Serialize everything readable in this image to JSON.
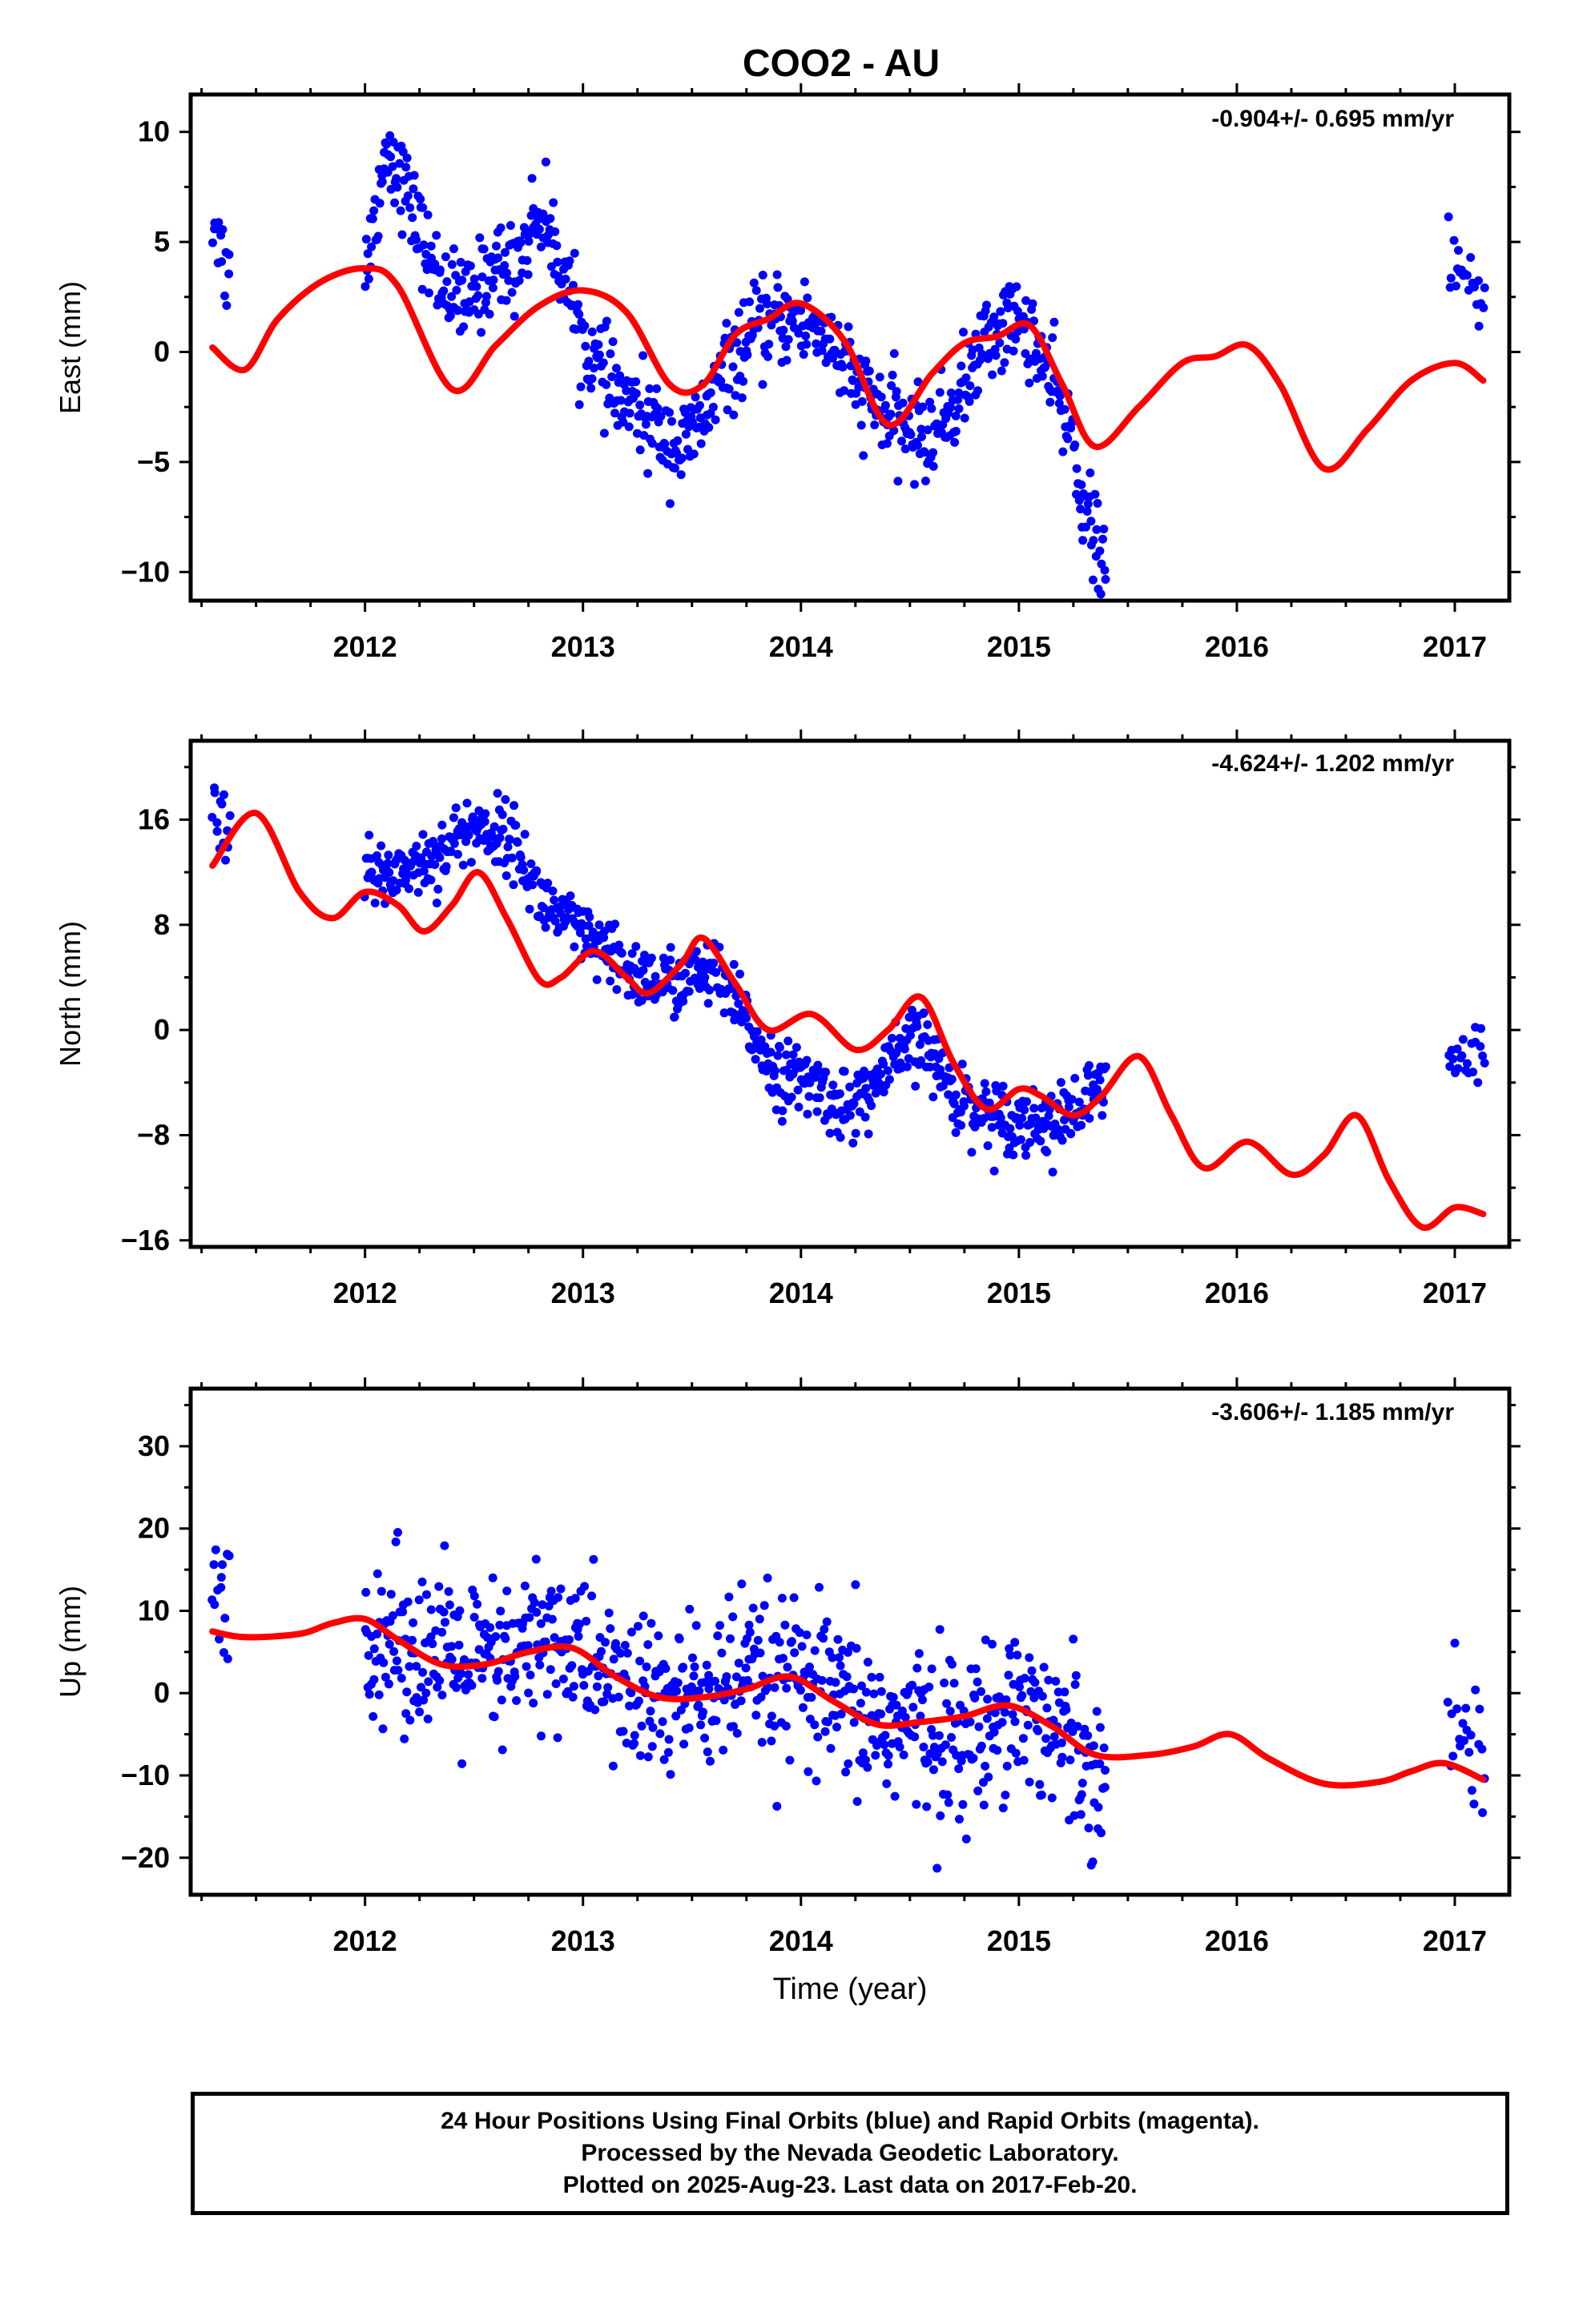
{
  "title": "COO2 - AU",
  "xlabel": "Time (year)",
  "colors": {
    "points": "#0000ff",
    "model": "#ff0000",
    "frame": "#000000"
  },
  "footer": {
    "line1": "24 Hour Positions Using Final Orbits (blue) and Rapid Orbits (magenta).",
    "line2": "Processed by the Nevada Geodetic Laboratory.",
    "line3": "Plotted on 2025-Aug-23. Last data on 2017-Feb-20."
  },
  "chart_data": [
    {
      "type": "scatter",
      "component": "east",
      "ylabel": "East (mm)",
      "rate": "-0.904+/- 0.695 mm/yr",
      "xlim": [
        2011.2,
        2017.25
      ],
      "ylim": [
        -11.3,
        11.7
      ],
      "yticks": [
        -10,
        -5,
        0,
        5,
        10
      ],
      "yticklabels": [
        "−10",
        "−5",
        "0",
        "5",
        "10"
      ],
      "xticks": [
        2012,
        2013,
        2014,
        2015,
        2016,
        2017
      ],
      "xticklabels": [
        "2012",
        "2013",
        "2014",
        "2015",
        "2016",
        "2017"
      ],
      "anchors": [
        [
          2011.32,
          6.0
        ],
        [
          2011.36,
          3.5
        ],
        [
          2012.02,
          4.5
        ],
        [
          2012.1,
          9.5
        ],
        [
          2012.2,
          7.0
        ],
        [
          2012.3,
          4.0
        ],
        [
          2012.45,
          2.0
        ],
        [
          2012.6,
          4.0
        ],
        [
          2012.68,
          3.8
        ],
        [
          2012.8,
          6.5
        ],
        [
          2012.9,
          4.0
        ],
        [
          2013.0,
          0.5
        ],
        [
          2013.15,
          -2.0
        ],
        [
          2013.35,
          -3.5
        ],
        [
          2013.45,
          -4.5
        ],
        [
          2013.55,
          -3.0
        ],
        [
          2013.65,
          -1.0
        ],
        [
          2013.8,
          1.0
        ],
        [
          2013.95,
          1.5
        ],
        [
          2014.1,
          1.0
        ],
        [
          2014.25,
          -1.5
        ],
        [
          2014.4,
          -3.0
        ],
        [
          2014.5,
          -3.5
        ],
        [
          2014.58,
          -4.0
        ],
        [
          2014.7,
          -2.5
        ],
        [
          2014.85,
          0.5
        ],
        [
          2014.95,
          1.5
        ],
        [
          2015.05,
          1.0
        ],
        [
          2015.15,
          -1.5
        ],
        [
          2015.25,
          -4.0
        ],
        [
          2015.3,
          -7.0
        ],
        [
          2015.38,
          -9.5
        ],
        [
          2016.98,
          4.0
        ],
        [
          2017.13,
          2.0
        ]
      ],
      "scatter_sd": 1.0,
      "model": {
        "x": [
          2011.3,
          2011.45,
          2011.6,
          2011.8,
          2012.0,
          2012.15,
          2012.4,
          2012.6,
          2012.8,
          2013.0,
          2013.2,
          2013.4,
          2013.55,
          2013.7,
          2013.85,
          2014.0,
          2014.2,
          2014.4,
          2014.6,
          2014.75,
          2014.9,
          2015.05,
          2015.2,
          2015.35,
          2015.55,
          2015.75,
          2015.9,
          2016.05,
          2016.2,
          2016.4,
          2016.6,
          2016.8,
          2017.0,
          2017.13
        ],
        "y": [
          0.2,
          -0.8,
          1.5,
          3.2,
          3.8,
          3.0,
          -1.7,
          0.3,
          2.1,
          2.8,
          1.8,
          -1.5,
          -1.5,
          0.8,
          1.5,
          2.2,
          0.5,
          -3.3,
          -1.0,
          0.4,
          0.7,
          1.2,
          -1.5,
          -4.3,
          -2.5,
          -0.5,
          -0.2,
          0.3,
          -1.5,
          -5.3,
          -3.5,
          -1.3,
          -0.5,
          -1.3
        ]
      }
    },
    {
      "type": "scatter",
      "component": "north",
      "ylabel": "North (mm)",
      "rate": "-4.624+/- 1.202 mm/yr",
      "xlim": [
        2011.2,
        2017.25
      ],
      "ylim": [
        -16.5,
        22
      ],
      "yticks": [
        -16,
        -8,
        0,
        8,
        16
      ],
      "yticklabels": [
        "−16",
        "−8",
        "0",
        "8",
        "16"
      ],
      "xticks": [
        2012,
        2013,
        2014,
        2015,
        2016,
        2017
      ],
      "xticklabels": [
        "2012",
        "2013",
        "2014",
        "2015",
        "2016",
        "2017"
      ],
      "anchors": [
        [
          2011.32,
          17.0
        ],
        [
          2011.36,
          15.5
        ],
        [
          2012.02,
          11.5
        ],
        [
          2012.3,
          13.0
        ],
        [
          2012.5,
          15.5
        ],
        [
          2012.68,
          14.5
        ],
        [
          2012.8,
          10.0
        ],
        [
          2013.0,
          7.0
        ],
        [
          2013.2,
          4.5
        ],
        [
          2013.4,
          3.5
        ],
        [
          2013.6,
          4.5
        ],
        [
          2013.75,
          0.5
        ],
        [
          2013.9,
          -3.5
        ],
        [
          2014.05,
          -4.0
        ],
        [
          2014.2,
          -6.0
        ],
        [
          2014.3,
          -5.0
        ],
        [
          2014.45,
          -2.0
        ],
        [
          2014.55,
          -0.5
        ],
        [
          2014.7,
          -5.0
        ],
        [
          2014.9,
          -6.5
        ],
        [
          2015.05,
          -7.0
        ],
        [
          2015.2,
          -7.0
        ],
        [
          2015.33,
          -5.0
        ],
        [
          2016.98,
          -2.0
        ],
        [
          2017.13,
          -2.5
        ]
      ],
      "scatter_sd": 1.3,
      "model": {
        "x": [
          2011.3,
          2011.5,
          2011.7,
          2011.85,
          2012.0,
          2012.15,
          2012.27,
          2012.4,
          2012.52,
          2012.65,
          2012.8,
          2012.9,
          2013.05,
          2013.2,
          2013.3,
          2013.45,
          2013.55,
          2013.7,
          2013.85,
          2014.05,
          2014.25,
          2014.4,
          2014.55,
          2014.7,
          2014.85,
          2015.0,
          2015.1,
          2015.25,
          2015.38,
          2015.55,
          2015.7,
          2015.85,
          2016.05,
          2016.25,
          2016.4,
          2016.55,
          2016.7,
          2016.85,
          2017.0,
          2017.13
        ],
        "y": [
          12.5,
          16.5,
          10.5,
          8.5,
          10.5,
          9.5,
          7.5,
          9.5,
          12.0,
          8.5,
          3.8,
          4.0,
          6.0,
          4.0,
          2.8,
          5.0,
          7.0,
          3.5,
          0.0,
          1.2,
          -1.5,
          0.0,
          2.5,
          -2.5,
          -6.0,
          -4.5,
          -5.0,
          -6.5,
          -5.0,
          -2.0,
          -6.5,
          -10.5,
          -8.5,
          -11.0,
          -9.5,
          -6.5,
          -11.5,
          -15.0,
          -13.5,
          -14.0
        ]
      }
    },
    {
      "type": "scatter",
      "component": "up",
      "ylabel": "Up (mm)",
      "rate": "-3.606+/- 1.185 mm/yr",
      "xlim": [
        2011.2,
        2017.25
      ],
      "ylim": [
        -24.5,
        37
      ],
      "yticks": [
        -20,
        -10,
        0,
        10,
        20,
        30
      ],
      "yticklabels": [
        "−20",
        "−10",
        "0",
        "10",
        "20",
        "30"
      ],
      "xticks": [
        2012,
        2013,
        2014,
        2015,
        2016,
        2017
      ],
      "xticklabels": [
        "2012",
        "2013",
        "2014",
        "2015",
        "2016",
        "2017"
      ],
      "anchors": [
        [
          2011.32,
          12.0
        ],
        [
          2011.36,
          10.0
        ],
        [
          2012.02,
          8.0
        ],
        [
          2012.2,
          6.0
        ],
        [
          2012.4,
          4.0
        ],
        [
          2012.6,
          3.0
        ],
        [
          2012.68,
          3.5
        ],
        [
          2012.8,
          7.0
        ],
        [
          2013.0,
          5.0
        ],
        [
          2013.2,
          0.0
        ],
        [
          2013.4,
          -1.0
        ],
        [
          2013.6,
          0.5
        ],
        [
          2013.8,
          1.5
        ],
        [
          2014.0,
          1.0
        ],
        [
          2014.2,
          -2.0
        ],
        [
          2014.4,
          -4.0
        ],
        [
          2014.6,
          -4.5
        ],
        [
          2014.8,
          -6.0
        ],
        [
          2014.95,
          0.0
        ],
        [
          2015.1,
          -3.0
        ],
        [
          2015.25,
          -6.0
        ],
        [
          2015.35,
          -8.0
        ],
        [
          2016.98,
          -6.0
        ],
        [
          2017.13,
          -5.0
        ]
      ],
      "scatter_sd": 5.0,
      "model": {
        "x": [
          2011.3,
          2011.45,
          2011.7,
          2011.85,
          2012.0,
          2012.15,
          2012.35,
          2012.55,
          2012.75,
          2012.95,
          2013.15,
          2013.35,
          2013.55,
          2013.75,
          2013.95,
          2014.15,
          2014.35,
          2014.55,
          2014.75,
          2014.95,
          2015.15,
          2015.35,
          2015.6,
          2015.8,
          2015.97,
          2016.15,
          2016.4,
          2016.65,
          2016.8,
          2016.95,
          2017.13
        ],
        "y": [
          7.5,
          6.8,
          7.2,
          8.5,
          9.0,
          6.5,
          3.5,
          3.5,
          5.0,
          5.5,
          2.0,
          -0.5,
          -0.5,
          0.5,
          2.0,
          -1.0,
          -3.8,
          -3.5,
          -2.8,
          -1.5,
          -4.0,
          -7.5,
          -7.5,
          -6.5,
          -5.0,
          -8.0,
          -11.0,
          -10.8,
          -9.5,
          -8.5,
          -10.5
        ]
      }
    }
  ]
}
